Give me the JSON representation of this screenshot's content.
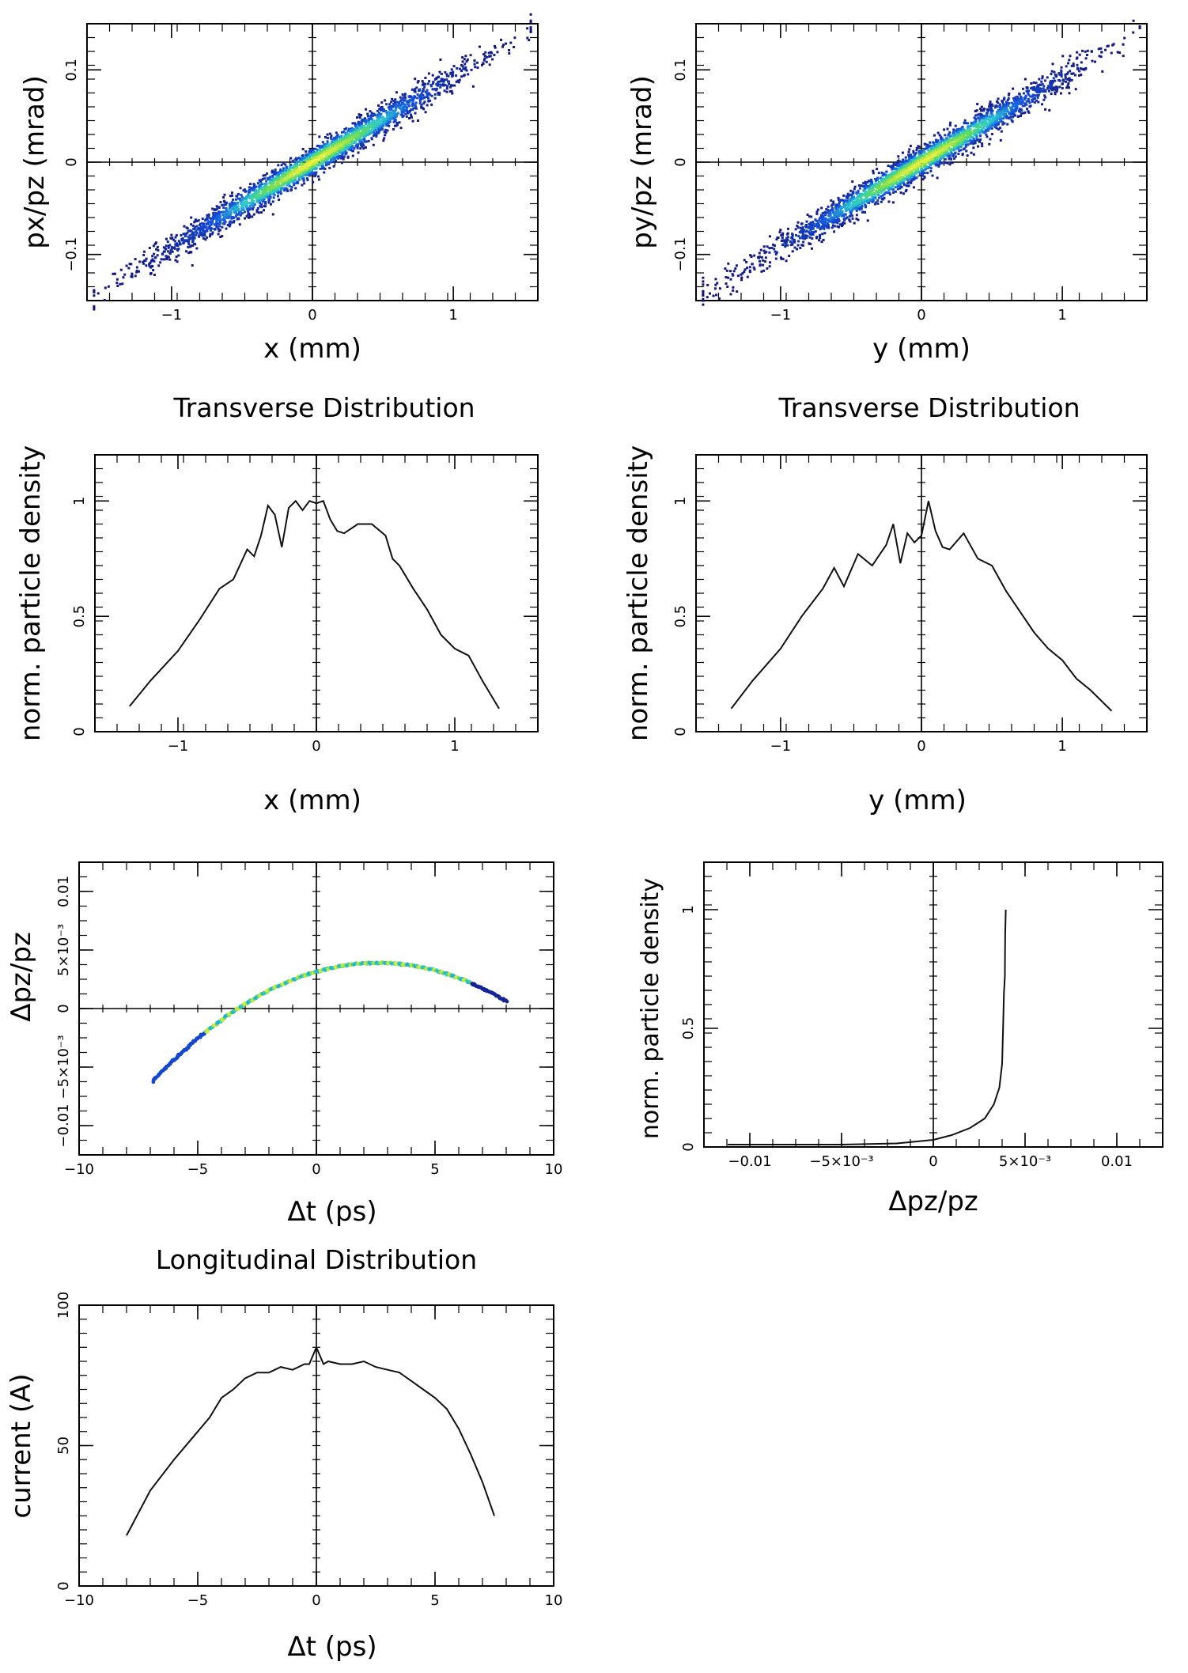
{
  "section_titles": {
    "transverse_x": "Transverse Distribution",
    "transverse_y": "Transverse Distribution",
    "longitudinal": "Longitudinal Distribution"
  },
  "chart_data": [
    {
      "id": "px-x",
      "type": "scatter",
      "title": "",
      "xlabel": "x (mm)",
      "ylabel": "px/pz (mrad)",
      "xlim": [
        -1.6,
        1.6
      ],
      "ylim": [
        -0.15,
        0.15
      ],
      "xticks": [
        {
          "v": -1,
          "label": "−1"
        },
        {
          "v": 0,
          "label": "0"
        },
        {
          "v": 1,
          "label": "1"
        }
      ],
      "yticks": [
        {
          "v": -0.1,
          "label": "−0.1"
        },
        {
          "v": 0,
          "label": "0"
        },
        {
          "v": 0.1,
          "label": "0.1"
        }
      ],
      "band": {
        "slope": 0.092,
        "intercept": 0.0,
        "x_range": [
          -1.55,
          1.55
        ],
        "y_spread": 0.008
      }
    },
    {
      "id": "py-y",
      "type": "scatter",
      "title": "",
      "xlabel": "y (mm)",
      "ylabel": "py/pz (mrad)",
      "xlim": [
        -1.6,
        1.6
      ],
      "ylim": [
        -0.15,
        0.15
      ],
      "xticks": [
        {
          "v": -1,
          "label": "−1"
        },
        {
          "v": 0,
          "label": "0"
        },
        {
          "v": 1,
          "label": "1"
        }
      ],
      "yticks": [
        {
          "v": -0.1,
          "label": "−0.1"
        },
        {
          "v": 0,
          "label": "0"
        },
        {
          "v": 0.1,
          "label": "0.1"
        }
      ],
      "band": {
        "slope": 0.092,
        "intercept": 0.0,
        "x_range": [
          -1.55,
          1.55
        ],
        "y_spread": 0.008
      }
    },
    {
      "id": "density-x",
      "type": "line",
      "title": "",
      "xlabel": "x (mm)",
      "ylabel": "norm. particle density",
      "xlim": [
        -1.6,
        1.6
      ],
      "ylim": [
        0,
        1.2
      ],
      "xticks": [
        {
          "v": -1,
          "label": "−1"
        },
        {
          "v": 0,
          "label": "0"
        },
        {
          "v": 1,
          "label": "1"
        }
      ],
      "yticks": [
        {
          "v": 0,
          "label": "0"
        },
        {
          "v": 0.5,
          "label": "0.5"
        },
        {
          "v": 1,
          "label": "1"
        }
      ],
      "series": [
        {
          "name": "density",
          "x": [
            -1.35,
            -1.2,
            -1.0,
            -0.85,
            -0.7,
            -0.6,
            -0.5,
            -0.45,
            -0.4,
            -0.35,
            -0.3,
            -0.25,
            -0.2,
            -0.15,
            -0.1,
            -0.05,
            0.0,
            0.05,
            0.1,
            0.15,
            0.2,
            0.3,
            0.4,
            0.5,
            0.55,
            0.6,
            0.7,
            0.8,
            0.9,
            1.0,
            1.1,
            1.2,
            1.32
          ],
          "y": [
            0.11,
            0.22,
            0.35,
            0.48,
            0.62,
            0.66,
            0.79,
            0.76,
            0.85,
            0.98,
            0.94,
            0.8,
            0.97,
            1.0,
            0.96,
            1.0,
            0.99,
            1.0,
            0.92,
            0.87,
            0.86,
            0.9,
            0.9,
            0.85,
            0.75,
            0.72,
            0.62,
            0.53,
            0.42,
            0.36,
            0.33,
            0.22,
            0.1
          ]
        }
      ]
    },
    {
      "id": "density-y",
      "type": "line",
      "title": "",
      "xlabel": "y (mm)",
      "ylabel": "norm. particle density",
      "xlim": [
        -1.6,
        1.6
      ],
      "ylim": [
        0,
        1.2
      ],
      "xticks": [
        {
          "v": -1,
          "label": "−1"
        },
        {
          "v": 0,
          "label": "0"
        },
        {
          "v": 1,
          "label": "1"
        }
      ],
      "yticks": [
        {
          "v": 0,
          "label": "0"
        },
        {
          "v": 0.5,
          "label": "0.5"
        },
        {
          "v": 1,
          "label": "1"
        }
      ],
      "series": [
        {
          "name": "density",
          "x": [
            -1.35,
            -1.2,
            -1.0,
            -0.85,
            -0.7,
            -0.62,
            -0.55,
            -0.45,
            -0.35,
            -0.25,
            -0.2,
            -0.15,
            -0.1,
            -0.05,
            0.0,
            0.05,
            0.1,
            0.15,
            0.2,
            0.3,
            0.4,
            0.5,
            0.6,
            0.7,
            0.8,
            0.9,
            1.0,
            1.1,
            1.2,
            1.35
          ],
          "y": [
            0.1,
            0.22,
            0.36,
            0.5,
            0.62,
            0.71,
            0.63,
            0.77,
            0.72,
            0.81,
            0.9,
            0.73,
            0.86,
            0.82,
            0.85,
            1.0,
            0.87,
            0.8,
            0.79,
            0.86,
            0.75,
            0.72,
            0.61,
            0.52,
            0.43,
            0.36,
            0.31,
            0.23,
            0.18,
            0.09
          ]
        }
      ]
    },
    {
      "id": "dpz-dt",
      "type": "scatter",
      "title": "",
      "xlabel": "Δt (ps)",
      "ylabel": "Δpz/pz",
      "xlim": [
        -10,
        10
      ],
      "ylim": [
        -0.0125,
        0.0125
      ],
      "xticks": [
        {
          "v": -10,
          "label": "−10"
        },
        {
          "v": -5,
          "label": "−5"
        },
        {
          "v": 0,
          "label": "0"
        },
        {
          "v": 5,
          "label": "5"
        },
        {
          "v": 10,
          "label": "10"
        }
      ],
      "yticks": [
        {
          "v": -0.01,
          "label": "−0.01"
        },
        {
          "v": -0.005,
          "label": "−5×10⁻³"
        },
        {
          "v": 0,
          "label": "0"
        },
        {
          "v": 0.005,
          "label": "5×10⁻³"
        },
        {
          "v": 0.01,
          "label": "0.01"
        }
      ],
      "curve": {
        "a": -0.000112,
        "t0": 2.6,
        "peak": 0.0039,
        "t_range": [
          -6.9,
          8.0
        ]
      }
    },
    {
      "id": "density-dpz",
      "type": "line",
      "title": "",
      "xlabel": "Δpz/pz",
      "ylabel": "norm. particle density",
      "xlim": [
        -0.0125,
        0.0125
      ],
      "ylim": [
        0,
        1.2
      ],
      "xticks": [
        {
          "v": -0.01,
          "label": "−0.01"
        },
        {
          "v": -0.005,
          "label": "−5×10⁻³"
        },
        {
          "v": 0,
          "label": "0"
        },
        {
          "v": 0.005,
          "label": "5×10⁻³"
        },
        {
          "v": 0.01,
          "label": "0.01"
        }
      ],
      "yticks": [
        {
          "v": 0,
          "label": "0"
        },
        {
          "v": 0.5,
          "label": "0.5"
        },
        {
          "v": 1,
          "label": "1"
        }
      ],
      "series": [
        {
          "name": "density",
          "x": [
            -0.0112,
            -0.008,
            -0.005,
            -0.002,
            0.0,
            0.001,
            0.002,
            0.0028,
            0.0033,
            0.0036,
            0.00375,
            0.0038,
            0.00385,
            0.0039,
            0.0039,
            0.00392,
            0.00395
          ],
          "y": [
            0.01,
            0.01,
            0.01,
            0.015,
            0.03,
            0.05,
            0.08,
            0.12,
            0.18,
            0.25,
            0.35,
            0.5,
            0.65,
            0.72,
            0.75,
            0.9,
            1.0
          ]
        }
      ]
    },
    {
      "id": "current-dt",
      "type": "line",
      "title": "",
      "xlabel": "Δt (ps)",
      "ylabel": "current (A)",
      "xlim": [
        -10,
        10
      ],
      "ylim": [
        0,
        100
      ],
      "xticks": [
        {
          "v": -10,
          "label": "−10"
        },
        {
          "v": -5,
          "label": "−5"
        },
        {
          "v": 0,
          "label": "0"
        },
        {
          "v": 5,
          "label": "5"
        },
        {
          "v": 10,
          "label": "10"
        }
      ],
      "yticks": [
        {
          "v": 0,
          "label": "0"
        },
        {
          "v": 50,
          "label": "50"
        },
        {
          "v": 100,
          "label": "100"
        }
      ],
      "series": [
        {
          "name": "current",
          "x": [
            -8.0,
            -7.0,
            -6.0,
            -5.0,
            -4.5,
            -4.0,
            -3.5,
            -3.0,
            -2.5,
            -2.0,
            -1.5,
            -1.0,
            -0.5,
            -0.3,
            0.0,
            0.3,
            0.5,
            1.0,
            1.5,
            2.0,
            2.5,
            3.0,
            3.5,
            4.0,
            4.5,
            5.0,
            5.5,
            6.0,
            6.5,
            7.0,
            7.5
          ],
          "y": [
            18,
            34,
            45,
            55,
            60,
            67,
            70,
            74,
            76,
            76,
            78,
            77,
            79,
            79,
            85,
            79,
            80,
            79,
            79,
            80,
            78,
            77,
            76,
            73,
            70,
            67,
            63,
            56,
            47,
            37,
            25
          ]
        }
      ]
    }
  ]
}
